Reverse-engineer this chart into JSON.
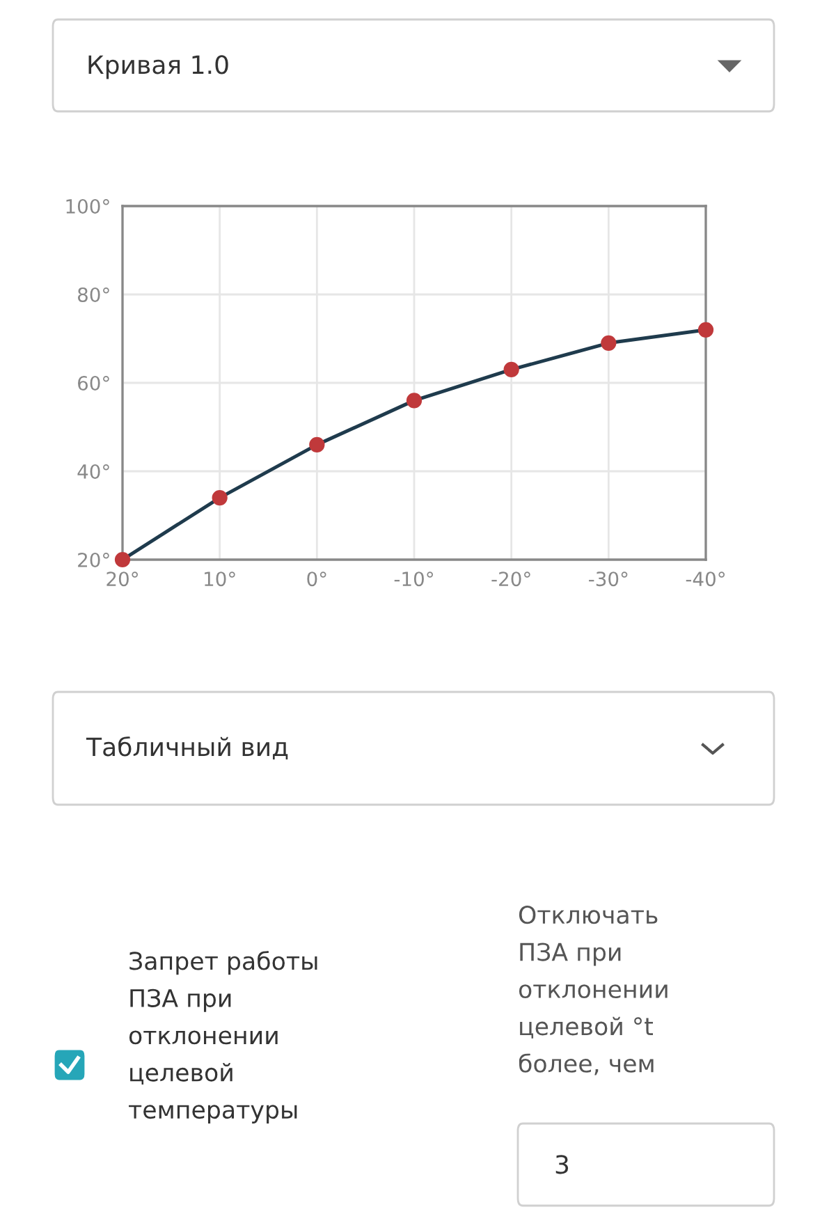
{
  "chart_data": {
    "type": "line",
    "title": "Кривая 1.0",
    "x": [
      20,
      10,
      0,
      -10,
      -20,
      -30,
      -40
    ],
    "series": [
      {
        "color": "#1f3b4d",
        "values": [
          20,
          34,
          46,
          56,
          63,
          69,
          72
        ]
      }
    ],
    "marker": "circle",
    "line_style": "solid",
    "grid": true,
    "xlim": [
      20,
      -40
    ],
    "ylim": [
      20,
      100
    ],
    "xticks": [
      {
        "value": 20,
        "label": "20°"
      },
      {
        "value": 10,
        "label": "10°"
      },
      {
        "value": 0,
        "label": "0°"
      },
      {
        "value": -10,
        "label": "-10°"
      },
      {
        "value": -20,
        "label": "-20°"
      },
      {
        "value": -30,
        "label": "-30°"
      },
      {
        "value": -40,
        "label": "-40°"
      }
    ],
    "yticks": [
      {
        "value": 20,
        "label": "20°"
      },
      {
        "value": 40,
        "label": "40°"
      },
      {
        "value": 60,
        "label": "60°"
      },
      {
        "value": 80,
        "label": "80°"
      },
      {
        "value": 100,
        "label": "100°"
      }
    ],
    "annotations": [
      "Табличный вид",
      "Запрет работы ПЗА при отклонении целевой температуры",
      "Отключать ПЗА при отклонении целевой °t более, чем",
      "3"
    ]
  }
}
